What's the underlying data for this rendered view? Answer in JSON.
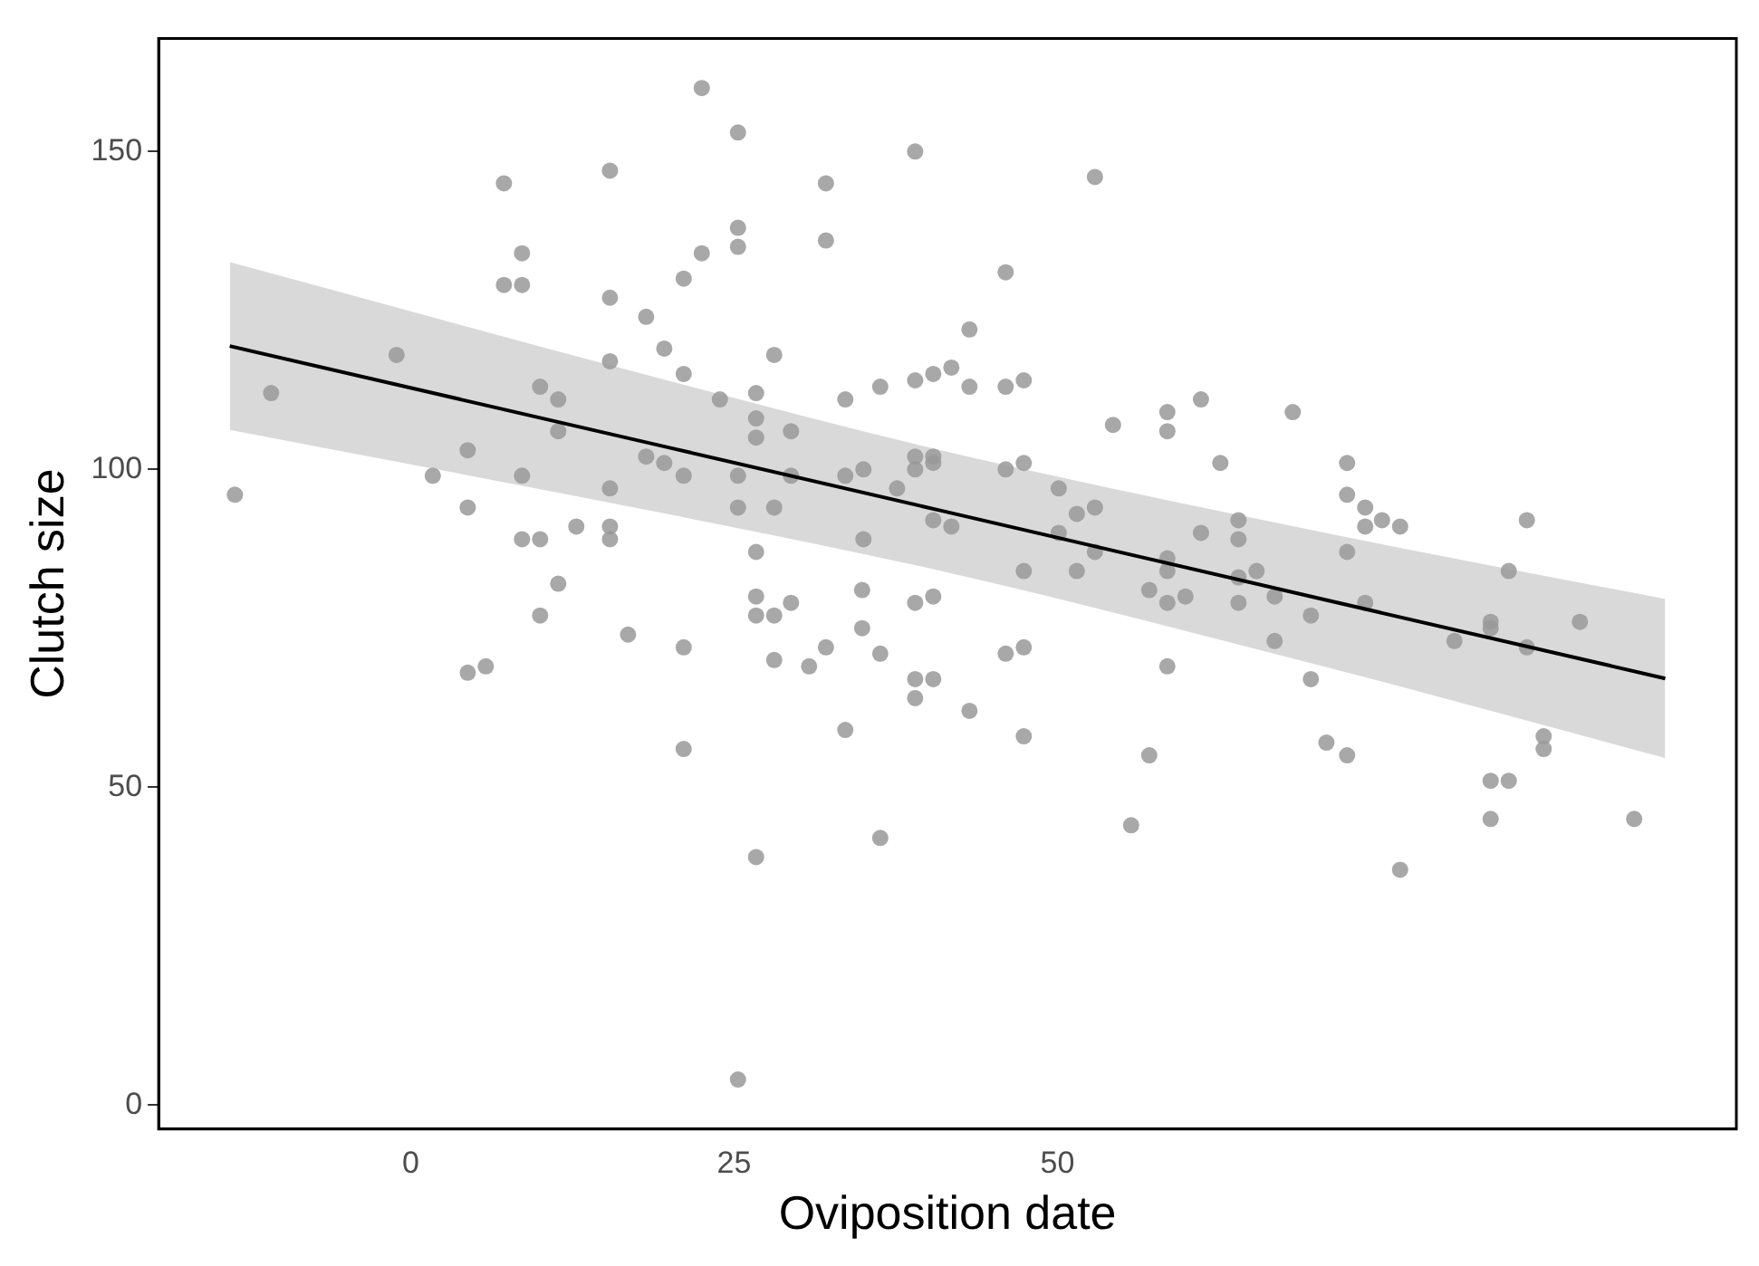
{
  "chart_data": {
    "type": "scatter",
    "xlabel": "Oviposition date",
    "ylabel": "Clutch size",
    "xlim": [
      -19.5,
      102.5
    ],
    "ylim": [
      -3.8,
      167.8
    ],
    "xticks": [
      0,
      25,
      50
    ],
    "yticks": [
      0,
      50,
      100,
      150
    ],
    "grid": false,
    "legend": false,
    "series": [
      {
        "type": "scatter",
        "marker": "circle",
        "color": "#999999",
        "x": [
          7.2,
          15.4,
          8.6,
          7.2,
          8.6,
          15.4,
          18.2,
          19.6,
          21.1,
          21.1,
          15.4,
          -1.1,
          -10.8,
          10,
          11.4,
          11.4,
          4.4,
          1.7,
          8.6,
          18.2,
          19.6,
          21.1,
          -13.6,
          15.4,
          4.4,
          12.8,
          15.4,
          15.4,
          8.6,
          10,
          11.4,
          10,
          4.4,
          5.8,
          16.8,
          21.1,
          21.1,
          22.5,
          25.3,
          39,
          32.1,
          52.9,
          25.3,
          25.3,
          22.5,
          32.1,
          46,
          43.2,
          28.1,
          23.9,
          26.7,
          33.6,
          36.3,
          39,
          40.4,
          41.8,
          43.2,
          46,
          47.4,
          54.3,
          58.5,
          58.5,
          61.1,
          26.7,
          26.7,
          29.4,
          25.3,
          29.4,
          33.6,
          35,
          37.6,
          39,
          39,
          40.4,
          40.4,
          46,
          47.4,
          50.1,
          51.5,
          52.9,
          25.3,
          28.1,
          40.4,
          41.8,
          35,
          50.1,
          26.7,
          47.4,
          51.5,
          52.9,
          58.5,
          58.5,
          61.1,
          26.7,
          26.7,
          28.1,
          29.4,
          34.9,
          34.9,
          39,
          40.4,
          28.1,
          30.8,
          32.1,
          36.3,
          39,
          40.4,
          39,
          43.2,
          46,
          47.4,
          33.6,
          47.4,
          57.1,
          58.5,
          59.9,
          58.5,
          57.1,
          55.7,
          26.7,
          36.3,
          25.3,
          68.2,
          62.6,
          72.4,
          72.4,
          73.8,
          73.8,
          75.1,
          76.5,
          86.3,
          64,
          64,
          72.4,
          65.4,
          64,
          84.9,
          64,
          66.8,
          66.8,
          69.6,
          73.8,
          69.6,
          70.8,
          72.4,
          80.7,
          83.5,
          83.5,
          86.3,
          90.4,
          87.6,
          87.6,
          83.5,
          84.9,
          83.5,
          94.6,
          76.5
        ],
        "values": [
          145,
          147,
          134,
          129,
          129,
          127,
          124,
          119,
          130,
          115,
          117,
          118,
          112,
          113,
          111,
          106,
          103,
          99,
          99,
          102,
          101,
          99,
          96,
          97,
          94,
          91,
          91,
          89,
          89,
          89,
          82,
          77,
          68,
          69,
          74,
          72,
          56,
          160,
          153,
          150,
          145,
          146,
          138,
          135,
          134,
          136,
          131,
          122,
          118,
          111,
          112,
          111,
          113,
          114,
          115,
          116,
          113,
          113,
          114,
          107,
          109,
          106,
          111,
          108,
          105,
          106,
          99,
          99,
          99,
          100,
          97,
          102,
          100,
          102,
          101,
          100,
          101,
          97,
          93,
          94,
          94,
          94,
          92,
          91,
          89,
          90,
          87,
          84,
          84,
          87,
          86,
          84,
          90,
          80,
          77,
          77,
          79,
          81,
          75,
          79,
          80,
          70,
          69,
          72,
          71,
          67,
          67,
          64,
          62,
          71,
          72,
          59,
          58,
          81,
          79,
          80,
          69,
          55,
          44,
          39,
          42,
          4,
          109,
          101,
          101,
          96,
          94,
          91,
          92,
          91,
          92,
          92,
          89,
          87,
          84,
          83,
          84,
          79,
          80,
          73,
          77,
          79,
          67,
          57,
          55,
          73,
          76,
          75,
          72,
          76,
          58,
          56,
          51,
          51,
          45,
          45,
          37
        ]
      },
      {
        "type": "line",
        "marker": "none",
        "color": "#000000",
        "x": [
          -14,
          20,
          41,
          70,
          97
        ],
        "values": [
          119.4,
          103.4,
          93.5,
          79.8,
          67.1
        ],
        "lower": [
          106.2,
          92.9,
          84,
          69.3,
          54.6
        ],
        "upper": [
          132.6,
          113.9,
          103,
          90.3,
          79.6
        ]
      }
    ]
  }
}
